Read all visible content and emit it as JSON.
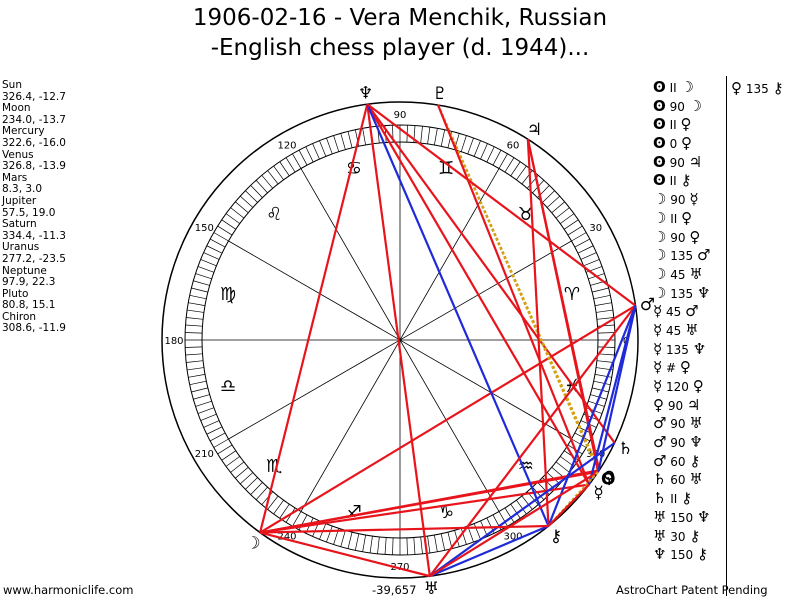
{
  "title_line1": "1906-02-16 - Vera Menchik, Russian",
  "title_line2": "-English chess player (d. 1944)...",
  "planets": [
    {
      "name": "Sun",
      "coords": "326.4, -12.7"
    },
    {
      "name": "Moon",
      "coords": "234.0, -13.7"
    },
    {
      "name": "Mercury",
      "coords": "322.6, -16.0"
    },
    {
      "name": "Venus",
      "coords": "326.8, -13.9"
    },
    {
      "name": "Mars",
      "coords": "8.3, 3.0"
    },
    {
      "name": "Jupiter",
      "coords": "57.5, 19.0"
    },
    {
      "name": "Saturn",
      "coords": "334.4, -11.3"
    },
    {
      "name": "Uranus",
      "coords": "277.2, -23.5"
    },
    {
      "name": "Neptune",
      "coords": "97.9, 22.3"
    },
    {
      "name": "Pluto",
      "coords": "80.8, 15.1"
    },
    {
      "name": "Chiron",
      "coords": "308.6, -11.9"
    }
  ],
  "aspects_top": {
    "p1": "♀",
    "angle": "135",
    "p2": "⚷"
  },
  "aspects": [
    {
      "p1": "ʘ",
      "angle": "II",
      "p2": "☽"
    },
    {
      "p1": "ʘ",
      "angle": "90",
      "p2": "☽"
    },
    {
      "p1": "ʘ",
      "angle": "II",
      "p2": "♀"
    },
    {
      "p1": "ʘ",
      "angle": "0",
      "p2": "♀"
    },
    {
      "p1": "ʘ",
      "angle": "90",
      "p2": "♃"
    },
    {
      "p1": "ʘ",
      "angle": "II",
      "p2": "⚷"
    },
    {
      "p1": "☽",
      "angle": "90",
      "p2": "☿"
    },
    {
      "p1": "☽",
      "angle": "II",
      "p2": "♀"
    },
    {
      "p1": "☽",
      "angle": "90",
      "p2": "♀"
    },
    {
      "p1": "☽",
      "angle": "135",
      "p2": "♂"
    },
    {
      "p1": "☽",
      "angle": "45",
      "p2": "♅"
    },
    {
      "p1": "☽",
      "angle": "135",
      "p2": "♆"
    },
    {
      "p1": "☿",
      "angle": "45",
      "p2": "♂"
    },
    {
      "p1": "☿",
      "angle": "45",
      "p2": "♅"
    },
    {
      "p1": "☿",
      "angle": "135",
      "p2": "♆"
    },
    {
      "p1": "☿",
      "angle": "#",
      "p2": "♀"
    },
    {
      "p1": "☿",
      "angle": "120",
      "p2": "♀"
    },
    {
      "p1": "♀",
      "angle": "90",
      "p2": "♃"
    },
    {
      "p1": "♂",
      "angle": "90",
      "p2": "♅"
    },
    {
      "p1": "♂",
      "angle": "90",
      "p2": "♆"
    },
    {
      "p1": "♂",
      "angle": "60",
      "p2": "⚷"
    },
    {
      "p1": "♄",
      "angle": "60",
      "p2": "♅"
    },
    {
      "p1": "♄",
      "angle": "II",
      "p2": "⚷"
    },
    {
      "p1": "♅",
      "angle": "150",
      "p2": "♆"
    },
    {
      "p1": "♅",
      "angle": "30",
      "p2": "⚷"
    },
    {
      "p1": "♆",
      "angle": "150",
      "p2": "⚷"
    }
  ],
  "wheel": {
    "degree_labels": [
      "0",
      "30",
      "60",
      "90",
      "120",
      "150",
      "180",
      "210",
      "240",
      "270",
      "300",
      "330"
    ],
    "sign_glyphs": [
      "♈",
      "♉",
      "♊",
      "♋",
      "♌",
      "♍",
      "♎",
      "♏",
      "♐",
      "♑",
      "♒",
      "♓"
    ],
    "planet_glyphs": {
      "Sun": "ʘ",
      "Moon": "☽",
      "Mercury": "☿",
      "Venus": "♀",
      "Mars": "♂",
      "Jupiter": "♃",
      "Saturn": "♄",
      "Uranus": "♅",
      "Neptune": "♆",
      "Pluto": "♇",
      "Chiron": "⚷"
    }
  },
  "colors": {
    "hard": "#e8141c",
    "soft": "#1f2ad8",
    "minor": "#d4a017"
  },
  "footer_left": "www.harmoniclife.com",
  "footer_mid": "-39,657",
  "footer_right": "AstroChart Patent Pending"
}
